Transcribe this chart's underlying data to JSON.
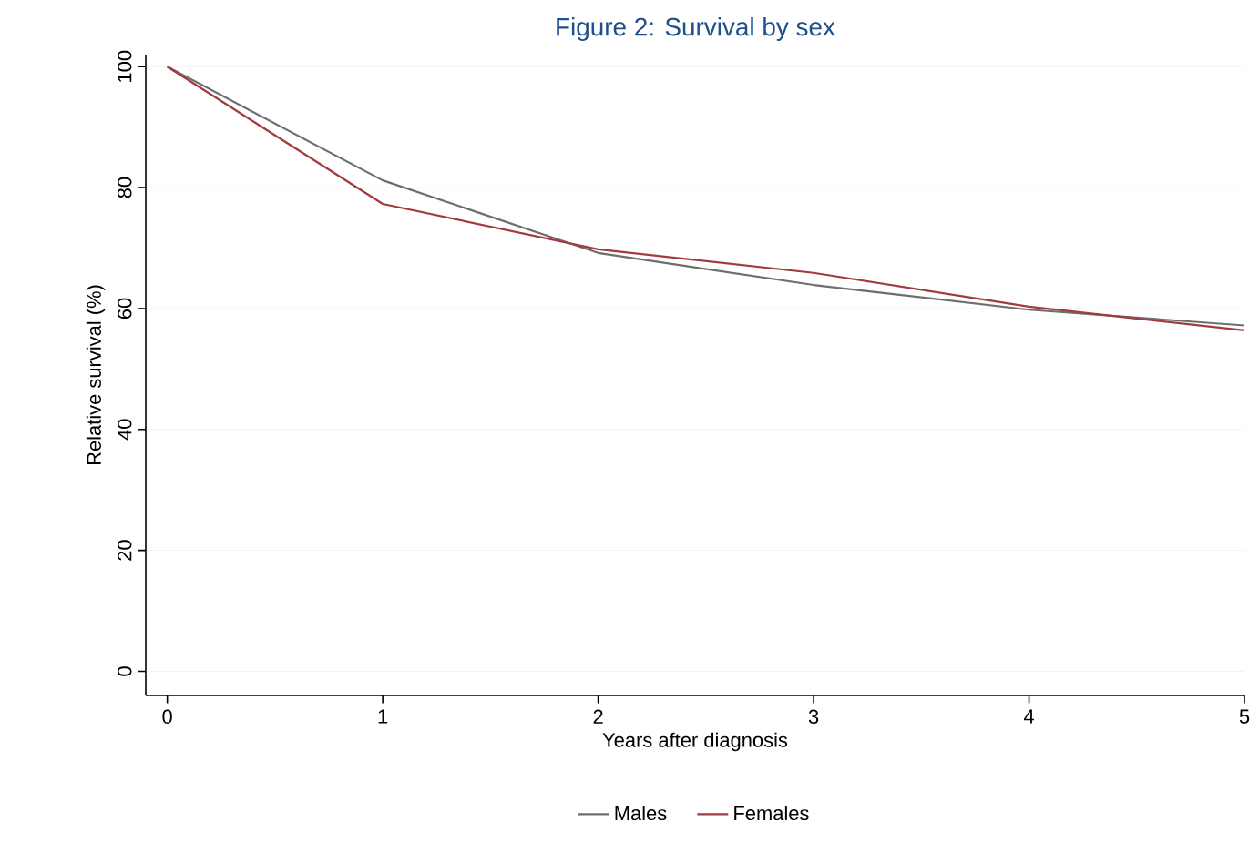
{
  "chart_data": {
    "type": "line",
    "title": "Figure 2: Survival by sex",
    "xlabel": "Years after diagnosis",
    "ylabel": "Relative survival (%)",
    "x": [
      0,
      1,
      2,
      3,
      4,
      5
    ],
    "series": [
      {
        "name": "Males",
        "color": "#6e6e6e",
        "values": [
          100,
          81.2,
          69.2,
          63.9,
          59.8,
          57.2
        ]
      },
      {
        "name": "Females",
        "color": "#a23b40",
        "values": [
          100,
          77.3,
          69.8,
          65.9,
          60.3,
          56.4
        ]
      }
    ],
    "xlim": [
      -0.1,
      5
    ],
    "ylim": [
      -4,
      102
    ],
    "xticks": [
      0,
      1,
      2,
      3,
      4,
      5
    ],
    "yticks": [
      0,
      20,
      40,
      60,
      80,
      100
    ],
    "grid": "y",
    "legend": "bottom",
    "marker": "none",
    "line_style": "solid"
  }
}
